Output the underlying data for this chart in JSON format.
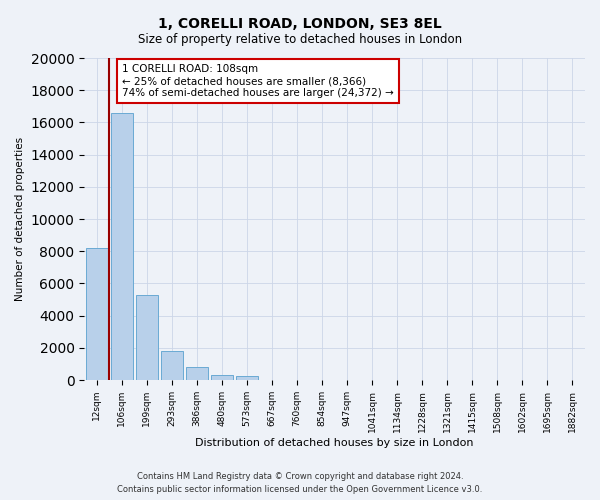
{
  "title": "1, CORELLI ROAD, LONDON, SE3 8EL",
  "subtitle": "Size of property relative to detached houses in London",
  "xlabel": "Distribution of detached houses by size in London",
  "ylabel": "Number of detached properties",
  "bar_values": [
    8200,
    16600,
    5300,
    1800,
    800,
    300,
    250,
    0,
    0,
    0,
    0,
    0,
    0,
    0,
    0,
    0,
    0,
    0,
    0,
    0
  ],
  "bar_labels": [
    "12sqm",
    "106sqm",
    "199sqm",
    "293sqm",
    "386sqm",
    "480sqm",
    "573sqm",
    "667sqm",
    "760sqm",
    "854sqm",
    "947sqm",
    "1041sqm",
    "1134sqm",
    "1228sqm",
    "1321sqm",
    "1415sqm",
    "1508sqm",
    "1602sqm",
    "1695sqm",
    "1882sqm"
  ],
  "bar_color": "#b8d0ea",
  "bar_edge_color": "#6aaad4",
  "vline_color": "#990000",
  "ylim": [
    0,
    20000
  ],
  "yticks": [
    0,
    2000,
    4000,
    6000,
    8000,
    10000,
    12000,
    14000,
    16000,
    18000,
    20000
  ],
  "annotation_title": "1 CORELLI ROAD: 108sqm",
  "annotation_line1": "← 25% of detached houses are smaller (8,366)",
  "annotation_line2": "74% of semi-detached houses are larger (24,372) →",
  "annotation_box_color": "#ffffff",
  "annotation_box_edge": "#cc0000",
  "footer1": "Contains HM Land Registry data © Crown copyright and database right 2024.",
  "footer2": "Contains public sector information licensed under the Open Government Licence v3.0.",
  "bg_color": "#eef2f8",
  "grid_color": "#ccd6e8",
  "fig_width": 6.0,
  "fig_height": 5.0,
  "title_fontsize": 10,
  "subtitle_fontsize": 8.5
}
